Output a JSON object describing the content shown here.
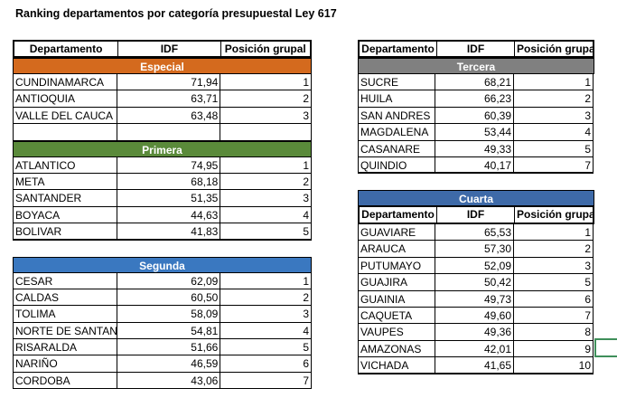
{
  "title": "Ranking departamentos por categoría presupuestal Ley 617",
  "colors": {
    "especial": "#d46a1e",
    "primera": "#5a8a3a",
    "segunda": "#3a78c0",
    "tercera": "#808080",
    "cuarta": "#3e6aa8",
    "selection": "#3f8f5a"
  },
  "headers": {
    "col1": "Departamento",
    "col2": "IDF",
    "col3": "Posición grupal"
  },
  "especial": {
    "label": "Especial",
    "rows": [
      {
        "dept": "CUNDINAMARCA",
        "idf": "71,94",
        "pos": "1"
      },
      {
        "dept": "ANTIOQUIA",
        "idf": "63,71",
        "pos": "2"
      },
      {
        "dept": "VALLE DEL CAUCA",
        "idf": "63,48",
        "pos": "3"
      }
    ]
  },
  "primera": {
    "label": "Primera",
    "rows": [
      {
        "dept": "ATLANTICO",
        "idf": "74,95",
        "pos": "1"
      },
      {
        "dept": "META",
        "idf": "68,18",
        "pos": "2"
      },
      {
        "dept": "SANTANDER",
        "idf": "51,35",
        "pos": "3"
      },
      {
        "dept": "BOYACA",
        "idf": "44,63",
        "pos": "4"
      },
      {
        "dept": "BOLIVAR",
        "idf": "41,83",
        "pos": "5"
      }
    ]
  },
  "segunda": {
    "label": "Segunda",
    "rows": [
      {
        "dept": "CESAR",
        "idf": "62,09",
        "pos": "1"
      },
      {
        "dept": "CALDAS",
        "idf": "60,50",
        "pos": "2"
      },
      {
        "dept": "TOLIMA",
        "idf": "58,09",
        "pos": "3"
      },
      {
        "dept": "NORTE DE SANTAN",
        "idf": "54,81",
        "pos": "4"
      },
      {
        "dept": "RISARALDA",
        "idf": "51,66",
        "pos": "5"
      },
      {
        "dept": "NARIÑO",
        "idf": "46,59",
        "pos": "6"
      },
      {
        "dept": "CORDOBA",
        "idf": "43,06",
        "pos": "7"
      }
    ]
  },
  "tercera": {
    "label": "Tercera",
    "rows": [
      {
        "dept": "SUCRE",
        "idf": "68,21",
        "pos": "1"
      },
      {
        "dept": "HUILA",
        "idf": "66,23",
        "pos": "2"
      },
      {
        "dept": "SAN ANDRES",
        "idf": "60,39",
        "pos": "3"
      },
      {
        "dept": "MAGDALENA",
        "idf": "53,44",
        "pos": "4"
      },
      {
        "dept": "CASANARE",
        "idf": "49,33",
        "pos": "5"
      },
      {
        "dept": "QUINDIO",
        "idf": "40,17",
        "pos": "7"
      }
    ]
  },
  "cuarta": {
    "label": "Cuarta",
    "rows": [
      {
        "dept": "GUAVIARE",
        "idf": "65,53",
        "pos": "1"
      },
      {
        "dept": "ARAUCA",
        "idf": "57,30",
        "pos": "2"
      },
      {
        "dept": "PUTUMAYO",
        "idf": "52,09",
        "pos": "3"
      },
      {
        "dept": "GUAJIRA",
        "idf": "50,42",
        "pos": "5"
      },
      {
        "dept": "GUAINIA",
        "idf": "49,73",
        "pos": "6"
      },
      {
        "dept": "CAQUETA",
        "idf": "49,60",
        "pos": "7"
      },
      {
        "dept": "VAUPES",
        "idf": "49,36",
        "pos": "8"
      },
      {
        "dept": "AMAZONAS",
        "idf": "42,01",
        "pos": "9"
      },
      {
        "dept": "VICHADA",
        "idf": "41,65",
        "pos": "10"
      }
    ]
  }
}
